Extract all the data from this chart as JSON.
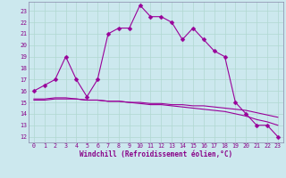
{
  "xlabel": "Windchill (Refroidissement éolien,°C)",
  "bg_color": "#cce8ee",
  "line_color": "#990099",
  "x": [
    0,
    1,
    2,
    3,
    4,
    5,
    6,
    7,
    8,
    9,
    10,
    11,
    12,
    13,
    14,
    15,
    16,
    17,
    18,
    19,
    20,
    21,
    22,
    23
  ],
  "temp_line": [
    16,
    16.5,
    17,
    19,
    17,
    15.5,
    17,
    21,
    21.5,
    21.5,
    23.5,
    22.5,
    22.5,
    22,
    20.5,
    21.5,
    20.5,
    19.5,
    19.0,
    15,
    14,
    13,
    13,
    12
  ],
  "flat_line1": [
    15.2,
    15.2,
    15.3,
    15.3,
    15.3,
    15.2,
    15.2,
    15.1,
    15.1,
    15.0,
    15.0,
    14.9,
    14.9,
    14.8,
    14.8,
    14.7,
    14.7,
    14.6,
    14.5,
    14.4,
    14.3,
    14.1,
    13.9,
    13.7
  ],
  "flat_line2": [
    15.3,
    15.3,
    15.4,
    15.4,
    15.3,
    15.2,
    15.2,
    15.1,
    15.1,
    15.0,
    14.9,
    14.8,
    14.8,
    14.7,
    14.6,
    14.5,
    14.4,
    14.3,
    14.2,
    14.0,
    13.8,
    13.5,
    13.3,
    13.0
  ],
  "ylim": [
    11.5,
    23.8
  ],
  "xlim": [
    -0.5,
    23.5
  ],
  "yticks": [
    12,
    13,
    14,
    15,
    16,
    17,
    18,
    19,
    20,
    21,
    22,
    23
  ],
  "xticks": [
    0,
    1,
    2,
    3,
    4,
    5,
    6,
    7,
    8,
    9,
    10,
    11,
    12,
    13,
    14,
    15,
    16,
    17,
    18,
    19,
    20,
    21,
    22,
    23
  ],
  "grid_color": "#b0d8d0",
  "marker": "D",
  "markersize": 2.5,
  "line_width": 0.8,
  "tick_color": "#880088",
  "label_color": "#880088",
  "spine_color": "#8888aa"
}
